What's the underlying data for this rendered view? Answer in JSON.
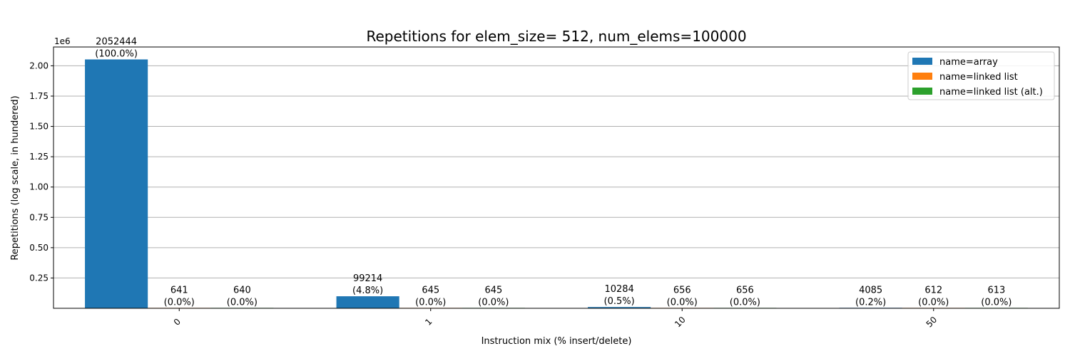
{
  "chart_data": {
    "type": "bar",
    "title": "Repetitions for elem_size= 512, num_elems=100000",
    "xlabel": "Instruction mix (% insert/delete)",
    "ylabel": "Repetitions (log scale, in hundered)",
    "y_offset_text": "1e6",
    "categories": [
      "0",
      "1",
      "10",
      "50"
    ],
    "ylim": [
      0,
      2155000
    ],
    "yticks": [
      250000,
      500000,
      750000,
      1000000,
      1250000,
      1500000,
      1750000,
      2000000
    ],
    "ytick_labels": [
      "0.25",
      "0.50",
      "0.75",
      "1.00",
      "1.25",
      "1.50",
      "1.75",
      "2.00"
    ],
    "grid": "y",
    "legend_position": "top-right",
    "series": [
      {
        "name": "name=array",
        "color": "#1f77b4",
        "values": [
          2052444,
          99214,
          10284,
          4085
        ],
        "labels": [
          "2052444\n(100.0%)",
          "99214\n(4.8%)",
          "10284\n(0.5%)",
          "4085\n(0.2%)"
        ]
      },
      {
        "name": "name=linked list",
        "color": "#ff7f0e",
        "values": [
          641,
          645,
          656,
          612
        ],
        "labels": [
          "641\n(0.0%)",
          "645\n(0.0%)",
          "656\n(0.0%)",
          "612\n(0.0%)"
        ]
      },
      {
        "name": "name=linked list (alt.)",
        "color": "#2ca02c",
        "values": [
          640,
          645,
          656,
          613
        ],
        "labels": [
          "640\n(0.0%)",
          "645\n(0.0%)",
          "656\n(0.0%)",
          "613\n(0.0%)"
        ]
      }
    ]
  }
}
